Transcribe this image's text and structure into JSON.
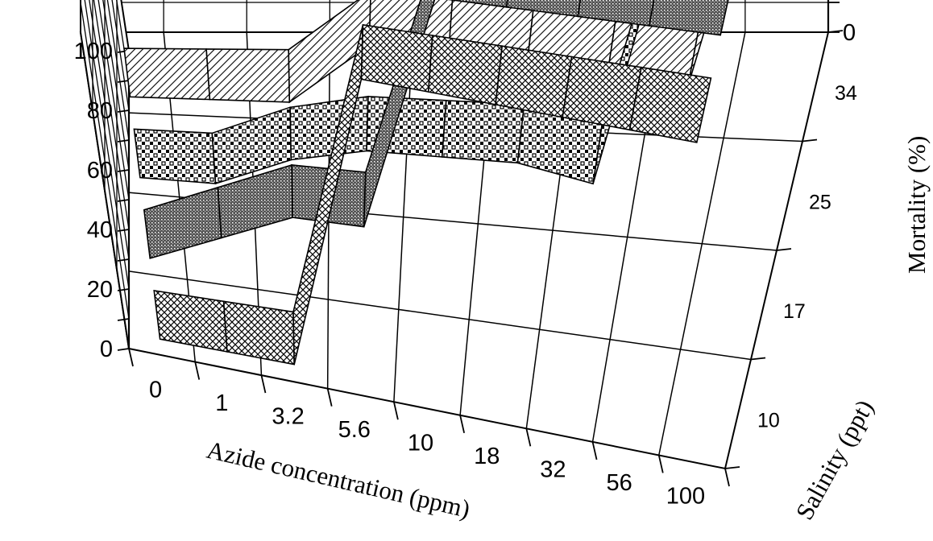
{
  "chart_data": {
    "type": "3d-ribbon",
    "title": "",
    "xlabel": "Azide concentration (ppm)",
    "ylabel": "Mortality (%)",
    "zlabel": "Salinity (ppt)",
    "categories": [
      "0",
      "1",
      "3.2",
      "5.6",
      "10",
      "18",
      "32",
      "56",
      "100"
    ],
    "salinity_ticks": [
      "10",
      "17",
      "25",
      "34"
    ],
    "y_ticks": [
      "0",
      "20",
      "40",
      "60",
      "80",
      "100"
    ],
    "ylim": [
      0,
      100
    ],
    "series": [
      {
        "values": [
          0,
          0,
          0,
          100,
          100,
          100,
          100,
          100,
          100
        ],
        "pattern": "crosshatch"
      },
      {
        "values": [
          0,
          10,
          20,
          20,
          100,
          100,
          100,
          100,
          100
        ],
        "pattern": "dark-stipple"
      },
      {
        "values": [
          0,
          0,
          10,
          15,
          15,
          15,
          10,
          100,
          100
        ],
        "pattern": "checker"
      },
      {
        "values": [
          0,
          0,
          0,
          20,
          20,
          20,
          15,
          10,
          100
        ],
        "pattern": "diagonal-lines"
      }
    ]
  }
}
